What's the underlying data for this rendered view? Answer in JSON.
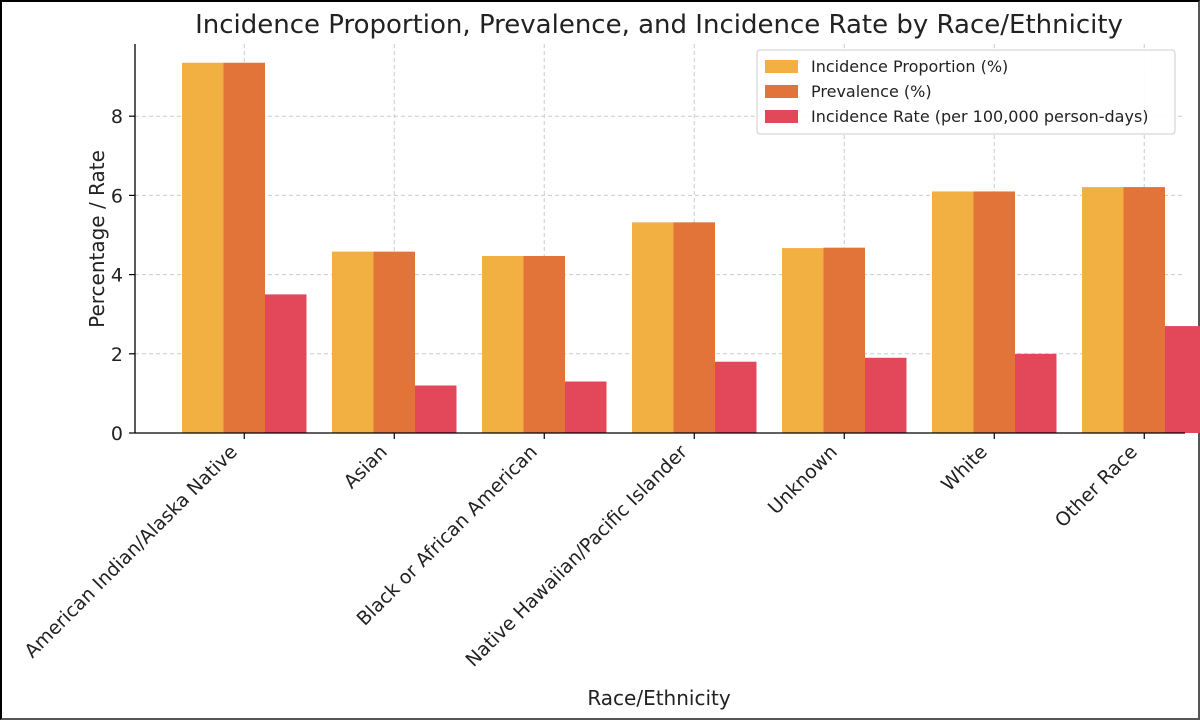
{
  "chart_data": {
    "type": "bar",
    "title": "Incidence Proportion, Prevalence, and Incidence Rate by Race/Ethnicity",
    "xlabel": "Race/Ethnicity",
    "ylabel": "Percentage / Rate",
    "categories": [
      "American Indian/Alaska Native",
      "Asian",
      "Black or African American",
      "Native Hawaiian/Pacific Islander",
      "Unknown",
      "White",
      "Other Race"
    ],
    "series": [
      {
        "name": "Incidence Proportion (%)",
        "color": "#f2b043",
        "values": [
          9.35,
          4.58,
          4.47,
          5.32,
          4.67,
          6.1,
          6.21
        ]
      },
      {
        "name": "Prevalence (%)",
        "color": "#e37439",
        "values": [
          9.35,
          4.58,
          4.47,
          5.32,
          4.68,
          6.1,
          6.21
        ]
      },
      {
        "name": "Incidence Rate (per 100,000 person-days)",
        "color": "#e2475a",
        "values": [
          3.5,
          1.2,
          1.3,
          1.8,
          1.9,
          2.0,
          2.7
        ]
      }
    ],
    "ylim": [
      0,
      9.8
    ],
    "yticks": [
      0,
      2,
      4,
      6,
      8
    ],
    "grid": true,
    "legend_position": "top-right"
  }
}
